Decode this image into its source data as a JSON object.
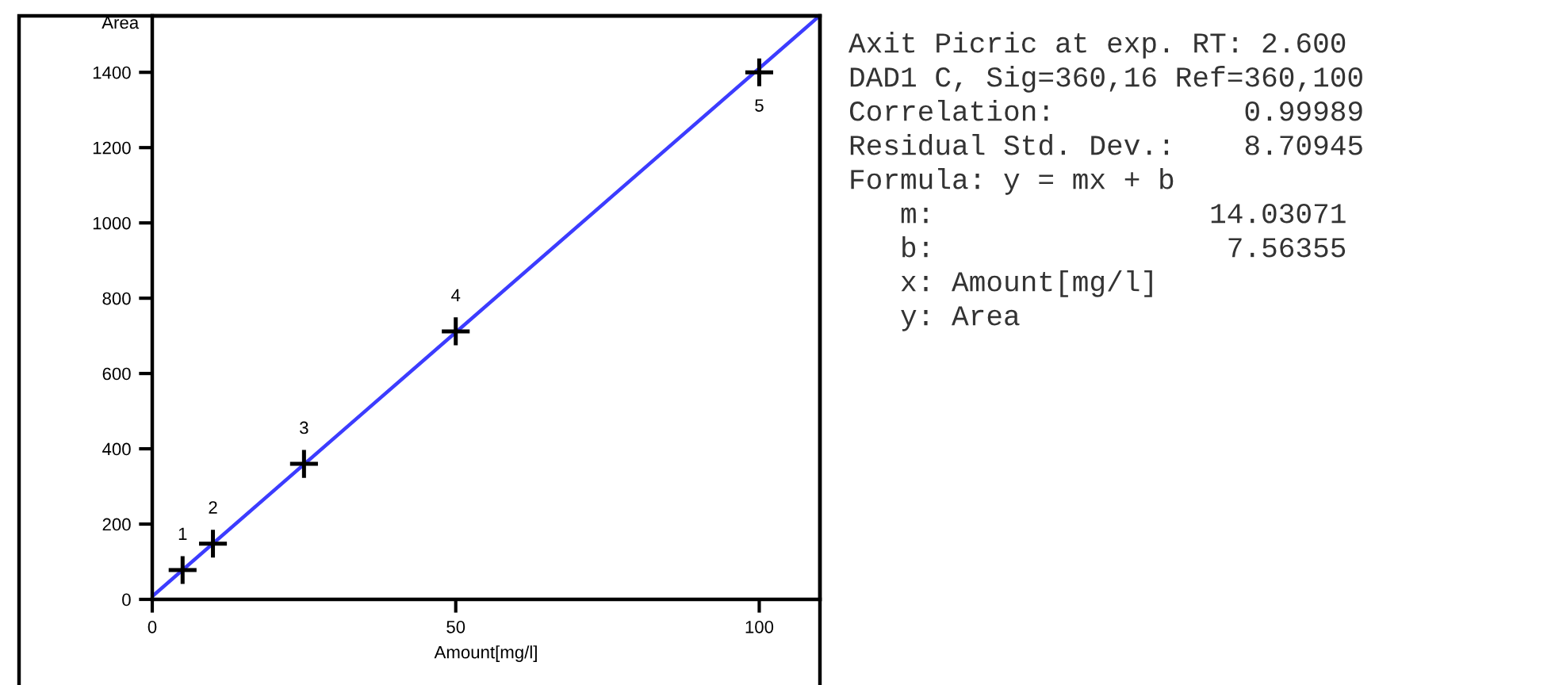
{
  "chart_data": {
    "type": "scatter",
    "xlabel": "Amount[mg/l]",
    "ylabel": "Area",
    "series": [
      {
        "color": "#000000",
        "marker": "cross",
        "x": [
          5,
          10,
          25,
          50,
          100
        ],
        "values": [
          78,
          148,
          360,
          712,
          1400
        ]
      },
      {
        "type": "line",
        "color": "#3c3cff",
        "marker": "none",
        "line_style": "solid",
        "x": [
          0,
          109.5
        ],
        "values": [
          8,
          1544
        ]
      }
    ],
    "xlim": [
      0,
      110
    ],
    "ylim": [
      0,
      1550
    ],
    "xticks": [
      0,
      50,
      100
    ],
    "yticks": [
      0,
      200,
      400,
      600,
      800,
      1000,
      1200,
      1400
    ],
    "grid": false,
    "legend": false,
    "annotations": [
      {
        "text": "1",
        "x": 5,
        "y": 78
      },
      {
        "text": "2",
        "x": 10,
        "y": 148
      },
      {
        "text": "3",
        "x": 25,
        "y": 360
      },
      {
        "text": "4",
        "x": 50,
        "y": 712
      },
      {
        "text": "5",
        "x": 100,
        "y": 1400
      },
      "Axit Picric at exp. RT: 2.600",
      "DAD1 C, Sig=360,16 Ref=360,100",
      "Correlation:           0.99989",
      "Residual Std. Dev.:    8.70945",
      "Formula: y = mx + b",
      "   m:                14.03071",
      "   b:                 7.56355",
      "   x: Amount[mg/l]",
      "   y: Area"
    ]
  }
}
